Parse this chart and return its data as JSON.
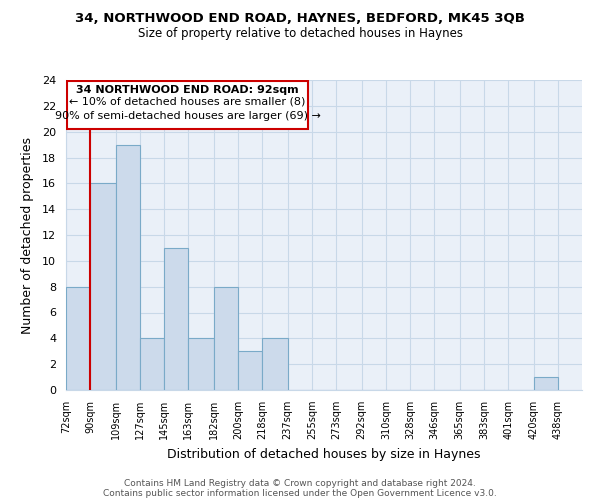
{
  "title1": "34, NORTHWOOD END ROAD, HAYNES, BEDFORD, MK45 3QB",
  "title2": "Size of property relative to detached houses in Haynes",
  "xlabel": "Distribution of detached houses by size in Haynes",
  "ylabel": "Number of detached properties",
  "bar_left_edges": [
    72,
    90,
    109,
    127,
    145,
    163,
    182,
    200,
    218,
    237,
    255,
    273,
    292,
    310,
    328,
    346,
    365,
    383,
    401,
    420
  ],
  "bar_heights": [
    8,
    16,
    19,
    4,
    11,
    4,
    8,
    3,
    4,
    0,
    0,
    0,
    0,
    0,
    0,
    0,
    0,
    0,
    0,
    1
  ],
  "bar_widths": [
    18,
    19,
    18,
    18,
    18,
    19,
    18,
    18,
    19,
    18,
    18,
    19,
    18,
    18,
    18,
    19,
    18,
    18,
    19,
    18
  ],
  "bar_color": "#ccdaeb",
  "bar_edgecolor": "#7aaac8",
  "highlight_line_x": 90,
  "highlight_line_color": "#cc0000",
  "ylim": [
    0,
    24
  ],
  "yticks": [
    0,
    2,
    4,
    6,
    8,
    10,
    12,
    14,
    16,
    18,
    20,
    22,
    24
  ],
  "xlim_left": 72,
  "xlim_right": 456,
  "xtick_positions": [
    72,
    90,
    109,
    127,
    145,
    163,
    182,
    200,
    218,
    237,
    255,
    273,
    292,
    310,
    328,
    346,
    365,
    383,
    401,
    420,
    438
  ],
  "xtick_labels": [
    "72sqm",
    "90sqm",
    "109sqm",
    "127sqm",
    "145sqm",
    "163sqm",
    "182sqm",
    "200sqm",
    "218sqm",
    "237sqm",
    "255sqm",
    "273sqm",
    "292sqm",
    "310sqm",
    "328sqm",
    "346sqm",
    "365sqm",
    "383sqm",
    "401sqm",
    "420sqm",
    "438sqm"
  ],
  "annotation_title": "34 NORTHWOOD END ROAD: 92sqm",
  "annotation_line1": "← 10% of detached houses are smaller (8)",
  "annotation_line2": "90% of semi-detached houses are larger (69) →",
  "footer1": "Contains HM Land Registry data © Crown copyright and database right 2024.",
  "footer2": "Contains public sector information licensed under the Open Government Licence v3.0.",
  "grid_color": "#c8d8e8",
  "bg_color": "#eaf0f8"
}
